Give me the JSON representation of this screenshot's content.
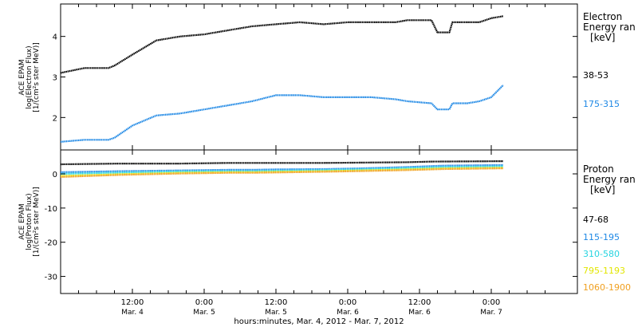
{
  "figure": {
    "x_axis_title": "hours:minutes, Mar.  4, 2012 - Mar.  7, 2012",
    "x_ticks": [
      {
        "t": 12,
        "time": "12:00",
        "date": "Mar. 4"
      },
      {
        "t": 24,
        "time": "0:00",
        "date": "Mar. 5"
      },
      {
        "t": 36,
        "time": "12:00",
        "date": "Mar. 5"
      },
      {
        "t": 48,
        "time": "0:00",
        "date": "Mar. 6"
      },
      {
        "t": 60,
        "time": "12:00",
        "date": "Mar. 6"
      },
      {
        "t": 72,
        "time": "0:00",
        "date": "Mar. 7"
      }
    ]
  },
  "chart_data": [
    {
      "type": "scatter",
      "panel": "electron",
      "ylabel_lines": [
        "ACE EPAM",
        "log(Electron Flux)",
        "[1/(cm²s ster MeV)]"
      ],
      "legend_title": [
        "Electron",
        "Energy ran",
        "[keV]"
      ],
      "ylim": [
        1.2,
        4.8
      ],
      "y_ticks": [
        2,
        3,
        4
      ],
      "series": [
        {
          "name": "38-53",
          "color": "#000000",
          "points": [
            [
              0,
              3.1
            ],
            [
              4,
              3.22
            ],
            [
              8,
              3.22
            ],
            [
              9,
              3.28
            ],
            [
              12,
              3.55
            ],
            [
              16,
              3.9
            ],
            [
              20,
              4.0
            ],
            [
              24,
              4.05
            ],
            [
              28,
              4.15
            ],
            [
              32,
              4.25
            ],
            [
              36,
              4.3
            ],
            [
              40,
              4.35
            ],
            [
              44,
              4.3
            ],
            [
              48,
              4.35
            ],
            [
              52,
              4.35
            ],
            [
              56,
              4.35
            ],
            [
              58,
              4.4
            ],
            [
              62,
              4.4
            ],
            [
              63,
              4.1
            ],
            [
              65,
              4.1
            ],
            [
              65.5,
              4.35
            ],
            [
              68,
              4.35
            ],
            [
              70,
              4.35
            ],
            [
              72,
              4.45
            ],
            [
              74,
              4.5
            ]
          ]
        },
        {
          "name": "175-315",
          "color": "#1e88e5",
          "points": [
            [
              0,
              1.4
            ],
            [
              4,
              1.45
            ],
            [
              8,
              1.45
            ],
            [
              9,
              1.5
            ],
            [
              12,
              1.8
            ],
            [
              16,
              2.05
            ],
            [
              20,
              2.1
            ],
            [
              24,
              2.2
            ],
            [
              28,
              2.3
            ],
            [
              32,
              2.4
            ],
            [
              36,
              2.55
            ],
            [
              40,
              2.55
            ],
            [
              44,
              2.5
            ],
            [
              48,
              2.5
            ],
            [
              52,
              2.5
            ],
            [
              56,
              2.45
            ],
            [
              58,
              2.4
            ],
            [
              62,
              2.35
            ],
            [
              63,
              2.2
            ],
            [
              65,
              2.2
            ],
            [
              65.5,
              2.35
            ],
            [
              68,
              2.35
            ],
            [
              70,
              2.4
            ],
            [
              72,
              2.5
            ],
            [
              74,
              2.8
            ]
          ]
        }
      ]
    },
    {
      "type": "scatter",
      "panel": "proton",
      "ylabel_lines": [
        "ACE EPAM",
        "log(Proton Flux)",
        "[1/(cm²s ster MeV)]"
      ],
      "legend_title": [
        "Proton",
        "Energy ran",
        "[keV]"
      ],
      "ylim": [
        -35,
        7
      ],
      "y_ticks": [
        -30,
        -20,
        -10,
        0
      ],
      "series": [
        {
          "name": "47-68",
          "color": "#000000",
          "points": [
            [
              0,
              2.8
            ],
            [
              10,
              3.0
            ],
            [
              20,
              3.0
            ],
            [
              28,
              3.2
            ],
            [
              36,
              3.2
            ],
            [
              44,
              3.2
            ],
            [
              50,
              3.3
            ],
            [
              58,
              3.4
            ],
            [
              62,
              3.6
            ],
            [
              74,
              3.7
            ]
          ]
        },
        {
          "name": "115-195",
          "color": "#1e88e5",
          "points": [
            [
              0,
              0.5
            ],
            [
              10,
              0.8
            ],
            [
              20,
              1.0
            ],
            [
              28,
              1.2
            ],
            [
              32,
              1.2
            ],
            [
              36,
              1.3
            ],
            [
              44,
              1.4
            ],
            [
              50,
              1.6
            ],
            [
              58,
              2.0
            ],
            [
              64,
              2.4
            ],
            [
              74,
              2.6
            ]
          ]
        },
        {
          "name": "310-580",
          "color": "#26d4e0",
          "points": [
            [
              0,
              0.0
            ],
            [
              10,
              0.4
            ],
            [
              20,
              0.7
            ],
            [
              28,
              0.8
            ],
            [
              32,
              0.8
            ],
            [
              36,
              0.9
            ],
            [
              44,
              1.1
            ],
            [
              50,
              1.3
            ],
            [
              58,
              1.7
            ],
            [
              64,
              2.0
            ],
            [
              74,
              2.2
            ]
          ]
        },
        {
          "name": "795-1193",
          "color": "#e2e600",
          "points": [
            [
              0,
              -0.6
            ],
            [
              10,
              -0.1
            ],
            [
              20,
              0.3
            ],
            [
              28,
              0.5
            ],
            [
              32,
              0.5
            ],
            [
              36,
              0.6
            ],
            [
              44,
              0.8
            ],
            [
              50,
              1.0
            ],
            [
              58,
              1.3
            ],
            [
              64,
              1.6
            ],
            [
              74,
              1.8
            ]
          ]
        },
        {
          "name": "1060-1900",
          "color": "#f0a020",
          "points": [
            [
              0,
              -0.9
            ],
            [
              10,
              -0.3
            ],
            [
              20,
              0.1
            ],
            [
              28,
              0.3
            ],
            [
              32,
              0.3
            ],
            [
              36,
              0.4
            ],
            [
              44,
              0.6
            ],
            [
              50,
              0.8
            ],
            [
              58,
              1.1
            ],
            [
              64,
              1.4
            ],
            [
              74,
              1.6
            ]
          ]
        }
      ]
    }
  ]
}
